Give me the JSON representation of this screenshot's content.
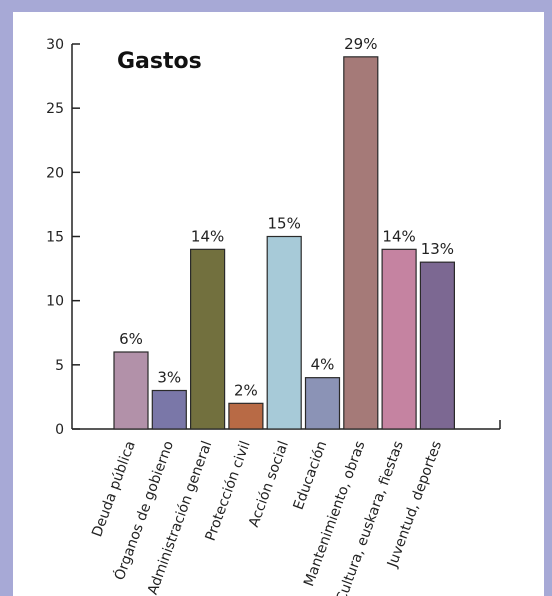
{
  "chart_data": {
    "type": "bar",
    "title": "Gastos",
    "categories": [
      "Deuda pública",
      "Órganos de gobierno",
      "Administración general",
      "Protección civil",
      "Acción social",
      "Educación",
      "Mantenimiento, obras",
      "Cultura, euskara, fiestas",
      "Juventud, deportes"
    ],
    "values": [
      6,
      3,
      14,
      2,
      15,
      4,
      29,
      14,
      13
    ],
    "data_labels": [
      "6%",
      "3%",
      "14%",
      "2%",
      "15%",
      "4%",
      "29%",
      "14%",
      "13%"
    ],
    "colors": [
      "#b291a9",
      "#7a77a8",
      "#72703e",
      "#b86a45",
      "#a7cad8",
      "#8b93b6",
      "#a57a78",
      "#c583a1",
      "#7c6892"
    ],
    "ylim": [
      0,
      30
    ],
    "yticks": [
      0,
      5,
      10,
      15,
      20,
      25,
      30
    ],
    "xlabel": "",
    "ylabel": "",
    "grid": false,
    "legend": "none"
  }
}
